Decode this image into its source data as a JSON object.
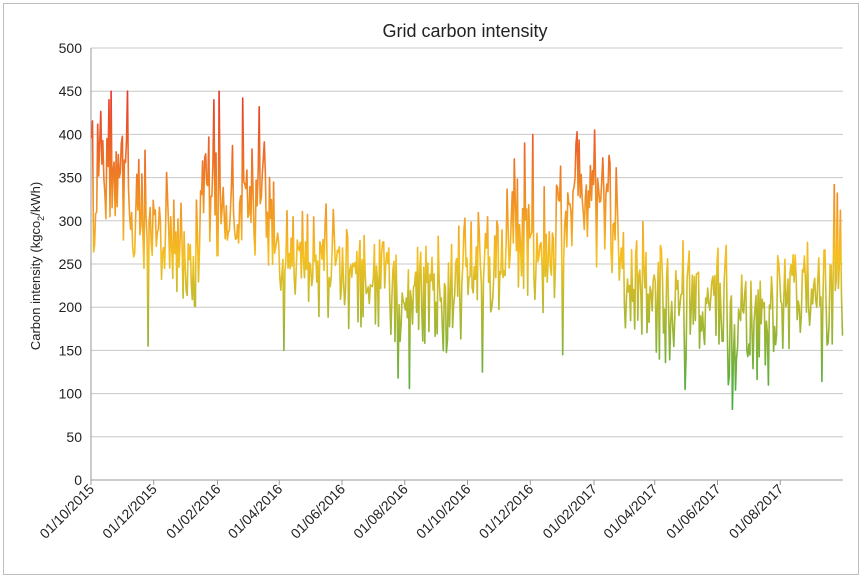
{
  "chart_data": {
    "type": "line",
    "title": "Grid carbon intensity",
    "ylabel": {
      "main": "Carbon intensity (kgco",
      "sub": "2",
      "tail": "/kWh)"
    },
    "xlabel": "",
    "ylim": [
      0,
      500
    ],
    "yticks": [
      "0",
      "50",
      "100",
      "150",
      "200",
      "250",
      "300",
      "350",
      "400",
      "450",
      "500"
    ],
    "xticks": [
      "01/10/2015",
      "01/12/2015",
      "01/02/2016",
      "01/04/2016",
      "01/06/2016",
      "01/08/2016",
      "01/10/2016",
      "01/12/2016",
      "01/02/2017",
      "01/04/2017",
      "01/06/2017",
      "01/08/2017"
    ],
    "grid": true,
    "legend": "none",
    "x_start": "2015-10-01",
    "x_end": "2017-09-30",
    "gradient_colors": {
      "high": "#e8372a",
      "mid": "#f5c023",
      "low": "#1aa64a"
    },
    "series": [
      {
        "x": [
          "2015-10-01",
          "2015-10-15",
          "2015-11-01",
          "2015-11-15",
          "2015-12-01",
          "2015-12-15",
          "2016-01-01",
          "2016-01-15",
          "2016-02-01",
          "2016-02-15",
          "2016-03-01",
          "2016-03-15",
          "2016-04-01",
          "2016-04-15",
          "2016-05-01",
          "2016-05-15",
          "2016-06-01",
          "2016-06-15",
          "2016-07-01",
          "2016-07-15",
          "2016-08-01",
          "2016-08-15",
          "2016-09-01",
          "2016-09-15",
          "2016-10-01",
          "2016-10-15",
          "2016-11-01",
          "2016-11-15",
          "2016-12-01",
          "2016-12-15",
          "2017-01-01",
          "2017-01-15",
          "2017-02-01",
          "2017-02-15",
          "2017-03-01",
          "2017-03-15",
          "2017-04-01",
          "2017-04-15",
          "2017-05-01",
          "2017-05-15",
          "2017-06-01",
          "2017-06-15",
          "2017-07-01",
          "2017-07-15",
          "2017-08-01",
          "2017-08-15",
          "2017-09-01",
          "2017-09-15",
          "2017-09-30"
        ],
        "mean": [
          340,
          360,
          350,
          320,
          300,
          275,
          245,
          300,
          330,
          315,
          330,
          340,
          265,
          255,
          250,
          245,
          235,
          240,
          230,
          220,
          210,
          215,
          215,
          225,
          245,
          255,
          270,
          285,
          275,
          260,
          300,
          330,
          330,
          320,
          240,
          235,
          225,
          215,
          210,
          205,
          200,
          190,
          190,
          200,
          205,
          210,
          200,
          205,
          230
        ],
        "range": [
          90,
          95,
          90,
          85,
          85,
          85,
          80,
          85,
          90,
          85,
          85,
          85,
          75,
          70,
          70,
          70,
          70,
          70,
          70,
          70,
          75,
          75,
          75,
          75,
          80,
          80,
          85,
          90,
          90,
          85,
          80,
          75,
          80,
          80,
          70,
          70,
          70,
          75,
          75,
          75,
          80,
          80,
          75,
          75,
          70,
          70,
          70,
          75,
          80
        ],
        "highs": [
          [
            "2015-10-20",
            450
          ],
          [
            "2015-11-05",
            450
          ],
          [
            "2016-02-02",
            450
          ],
          [
            "2016-01-28",
            440
          ],
          [
            "2016-02-25",
            442
          ],
          [
            "2016-03-12",
            432
          ],
          [
            "2016-11-25",
            390
          ],
          [
            "2016-12-03",
            400
          ],
          [
            "2017-01-15",
            403
          ],
          [
            "2017-02-01",
            405
          ],
          [
            "2017-09-22",
            342
          ],
          [
            "2017-09-25",
            332
          ]
        ],
        "lows": [
          [
            "2015-11-25",
            155
          ],
          [
            "2016-04-05",
            150
          ],
          [
            "2016-07-25",
            118
          ],
          [
            "2016-08-05",
            106
          ],
          [
            "2016-10-15",
            125
          ],
          [
            "2017-01-01",
            145
          ],
          [
            "2017-04-05",
            140
          ],
          [
            "2017-04-30",
            105
          ],
          [
            "2017-06-15",
            82
          ],
          [
            "2017-07-20",
            110
          ],
          [
            "2017-09-10",
            114
          ]
        ]
      }
    ]
  }
}
